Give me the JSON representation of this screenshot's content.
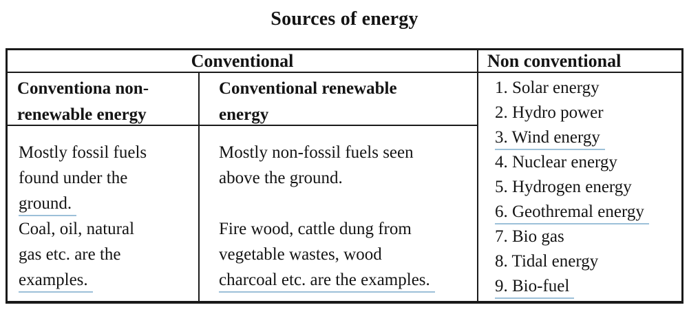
{
  "title": "Sources of energy",
  "table": {
    "header": {
      "conventional": "Conventional",
      "non_conventional": "Non conventional"
    },
    "subheader": {
      "non_renewable_lines": [
        "Conventiona non-",
        "renewable energy"
      ],
      "renewable_lines": [
        "Conventional renewable",
        "energy"
      ]
    },
    "body": {
      "non_renewable_lines": [
        "Mostly fossil fuels",
        "found under the",
        "ground.",
        "Coal, oil, natural",
        "gas etc. are the",
        "examples."
      ],
      "renewable_lines": [
        "Mostly non-fossil fuels seen",
        "above the ground.",
        "",
        "Fire wood, cattle dung from",
        "vegetable wastes, wood",
        "charcoal etc. are the examples."
      ],
      "non_conventional_items": [
        "1. Solar energy",
        "2. Hydro power",
        "3. Wind energy",
        "4. Nuclear energy",
        "5. Hydrogen energy",
        "6. Geothremal energy",
        "7. Bio gas",
        "8. Tidal energy",
        "9. Bio-fuel"
      ]
    }
  },
  "colors": {
    "border": "#1a1a1a",
    "text": "#141414",
    "underline_highlight": "#9cc0d8",
    "background": "#ffffff"
  }
}
